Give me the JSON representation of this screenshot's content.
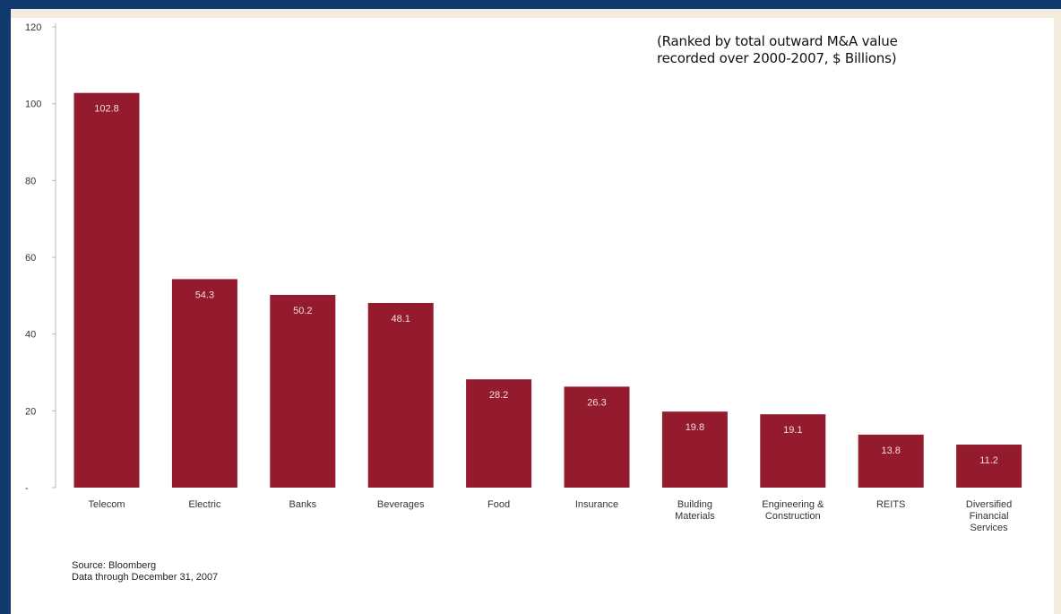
{
  "chart_data": {
    "type": "bar",
    "categories": [
      "Telecom",
      "Electric",
      "Banks",
      "Beverages",
      "Food",
      "Insurance",
      "Building Materials",
      "Engineering & Construction",
      "REITS",
      "Diversified Financial Services"
    ],
    "category_lines": [
      [
        "Telecom"
      ],
      [
        "Electric"
      ],
      [
        "Banks"
      ],
      [
        "Beverages"
      ],
      [
        "Food"
      ],
      [
        "Insurance"
      ],
      [
        "Building",
        "Materials"
      ],
      [
        "Engineering &",
        "Construction"
      ],
      [
        "REITS"
      ],
      [
        "Diversified",
        "Financial",
        "Services"
      ]
    ],
    "values": [
      102.8,
      54.3,
      50.2,
      48.1,
      28.2,
      26.3,
      19.8,
      19.1,
      13.8,
      11.2
    ],
    "data_labels": [
      "102.8",
      "54.3",
      "50.2",
      "48.1",
      "28.2",
      "26.3",
      "19.8",
      "19.1",
      "13.8",
      "11.2"
    ],
    "yticks": [
      0,
      20,
      40,
      60,
      80,
      100,
      120
    ],
    "ytick_labels": [
      "-",
      "20",
      "40",
      "60",
      "80",
      "100",
      "120"
    ],
    "ylim": [
      0,
      120
    ],
    "grid": false,
    "title": "",
    "xlabel": "",
    "ylabel": "",
    "colors": {
      "bar": "#931b2d",
      "data_label": "#f4dcdf",
      "axis": "#b9b9b9",
      "tick_text": "#333333",
      "frame": "#123a6e"
    }
  },
  "note": {
    "line1": "(Ranked by total outward M&A value",
    "line2": "recorded over 2000-2007, $ Billions)"
  },
  "source": {
    "line1": "Source:  Bloomberg",
    "line2": "Data through December 31, 2007"
  }
}
